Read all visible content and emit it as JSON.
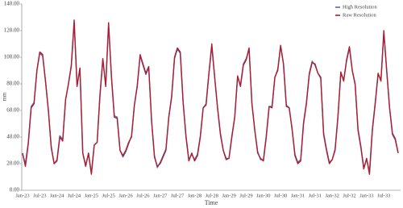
{
  "chart_data": {
    "type": "line",
    "x_label": "Time",
    "y_label": "mm",
    "categories": [
      "Jan-23",
      null,
      null,
      null,
      null,
      null,
      "Jul-23",
      null,
      null,
      null,
      null,
      null,
      "Jan-24",
      null,
      null,
      null,
      null,
      null,
      "Jul-24",
      null,
      null,
      null,
      null,
      null,
      "Jan-25",
      null,
      null,
      null,
      null,
      null,
      "Jul-25",
      null,
      null,
      null,
      null,
      null,
      "Jan-26",
      null,
      null,
      null,
      null,
      null,
      "Jul-26",
      null,
      null,
      null,
      null,
      null,
      "Jan-27",
      null,
      null,
      null,
      null,
      null,
      "Jul-27",
      null,
      null,
      null,
      null,
      null,
      "Jan-28",
      null,
      null,
      null,
      null,
      null,
      "Jul-28",
      null,
      null,
      null,
      null,
      null,
      "Jan-29",
      null,
      null,
      null,
      null,
      null,
      "Jul-29",
      null,
      null,
      null,
      null,
      null,
      "Jan-30",
      null,
      null,
      null,
      null,
      null,
      "Jul-30",
      null,
      null,
      null,
      null,
      null,
      "Jan-31",
      null,
      null,
      null,
      null,
      null,
      "Jul-31",
      null,
      null,
      null,
      null,
      null,
      "Jan-32",
      null,
      null,
      null,
      null,
      null,
      "Jul-32",
      null,
      null,
      null,
      null,
      null,
      "Jan-33",
      null,
      null,
      null,
      null,
      null,
      "Jul-33",
      null,
      null,
      null,
      null,
      null
    ],
    "series": [
      {
        "name": "High Resolution",
        "color": "#4a6fb5",
        "values": [
          27,
          20,
          36,
          63,
          66,
          90,
          103,
          101,
          82,
          60,
          33,
          20,
          23,
          41,
          38,
          68,
          80,
          93,
          126,
          79,
          91,
          28,
          19,
          27,
          13,
          34,
          36,
          71,
          98,
          79,
          124,
          86,
          56,
          55,
          30,
          25,
          29,
          35,
          41,
          64,
          79,
          101,
          94,
          87,
          92,
          52,
          26,
          17,
          21,
          26,
          31,
          55,
          71,
          99,
          106,
          103,
          66,
          41,
          23,
          27,
          23,
          27,
          41,
          62,
          65,
          88,
          108,
          85,
          62,
          43,
          30,
          24,
          24,
          41,
          55,
          85,
          79,
          95,
          99,
          106,
          65,
          45,
          29,
          23,
          23,
          41,
          63,
          63,
          85,
          91,
          108,
          95,
          64,
          62,
          46,
          27,
          21,
          23,
          51,
          66,
          88,
          97,
          94,
          88,
          84,
          43,
          31,
          21,
          23,
          31,
          56,
          88,
          83,
          97,
          107,
          90,
          79,
          46,
          33,
          17,
          23,
          14,
          46,
          66,
          87,
          83,
          118,
          90,
          62,
          43,
          39,
          28
        ]
      },
      {
        "name": "Raw Resolution",
        "color": "#b01c2e",
        "values": [
          28,
          18,
          35,
          62,
          65,
          90,
          104,
          102,
          82,
          60,
          32,
          20,
          22,
          40,
          37,
          68,
          80,
          94,
          128,
          78,
          92,
          28,
          18,
          28,
          12,
          34,
          36,
          72,
          99,
          78,
          126,
          85,
          55,
          54,
          30,
          26,
          30,
          36,
          40,
          64,
          78,
          102,
          95,
          88,
          93,
          52,
          25,
          18,
          20,
          25,
          30,
          55,
          70,
          100,
          107,
          104,
          66,
          40,
          22,
          28,
          22,
          26,
          40,
          62,
          64,
          88,
          110,
          85,
          62,
          42,
          30,
          23,
          24,
          40,
          55,
          86,
          78,
          94,
          98,
          107,
          65,
          45,
          28,
          24,
          22,
          40,
          63,
          62,
          85,
          90,
          109,
          95,
          63,
          62,
          46,
          26,
          20,
          22,
          50,
          65,
          87,
          96,
          95,
          88,
          85,
          42,
          30,
          20,
          23,
          30,
          55,
          89,
          82,
          98,
          108,
          90,
          80,
          45,
          32,
          16,
          24,
          12,
          45,
          65,
          88,
          82,
          120,
          90,
          62,
          42,
          38,
          28
        ]
      }
    ],
    "ylim": [
      0,
      140
    ],
    "yticks": [
      {
        "value": 0,
        "label": "0.00"
      },
      {
        "value": 20,
        "label": "20.00"
      },
      {
        "value": 40,
        "label": "40.00"
      },
      {
        "value": 60,
        "label": "60.00"
      },
      {
        "value": 80,
        "label": "80.00"
      },
      {
        "value": 100,
        "label": "100.00"
      },
      {
        "value": 120,
        "label": "120.00"
      },
      {
        "value": 140,
        "label": "140.00"
      }
    ],
    "grid": false,
    "legend": "top-right"
  }
}
